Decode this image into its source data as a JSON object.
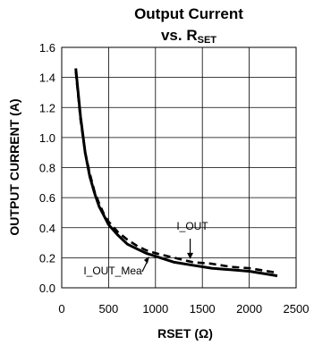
{
  "chart_data": {
    "type": "line",
    "title_line1": "Output Current",
    "title_line2_prefix": "vs. R",
    "title_line2_subscript": "SET",
    "xlabel": "RSET (Ω)",
    "ylabel": "OUTPUT CURRENT (A)",
    "xlim": [
      0,
      2500
    ],
    "ylim": [
      0.0,
      1.6
    ],
    "xticks": [
      "0",
      "500",
      "1000",
      "1500",
      "2000",
      "2500"
    ],
    "yticks": [
      "0.0",
      "0.2",
      "0.4",
      "0.6",
      "0.8",
      "1.0",
      "1.2",
      "1.4",
      "1.6"
    ],
    "grid": true,
    "series": [
      {
        "name": "I_OUT",
        "style": "dashed",
        "color": "#000000",
        "x": [
          150,
          200,
          250,
          300,
          350,
          400,
          450,
          500,
          600,
          700,
          800,
          900,
          1000,
          1200,
          1400,
          1600,
          1800,
          2000,
          2200,
          2300
        ],
        "y": [
          1.44,
          1.12,
          0.9,
          0.76,
          0.64,
          0.56,
          0.49,
          0.44,
          0.37,
          0.32,
          0.28,
          0.25,
          0.23,
          0.2,
          0.17,
          0.16,
          0.14,
          0.13,
          0.11,
          0.1
        ]
      },
      {
        "name": "I_OUT_Mea",
        "style": "solid",
        "color": "#000000",
        "x": [
          150,
          200,
          250,
          300,
          350,
          400,
          450,
          500,
          600,
          700,
          800,
          900,
          1000,
          1200,
          1400,
          1600,
          1800,
          2000,
          2200,
          2300
        ],
        "y": [
          1.46,
          1.14,
          0.9,
          0.74,
          0.63,
          0.54,
          0.48,
          0.42,
          0.35,
          0.29,
          0.26,
          0.23,
          0.21,
          0.17,
          0.15,
          0.13,
          0.12,
          0.11,
          0.09,
          0.08
        ]
      }
    ],
    "annotations": [
      {
        "text": "I_OUT",
        "series": 0
      },
      {
        "text": "I_OUT_Mea",
        "series": 1
      }
    ]
  }
}
